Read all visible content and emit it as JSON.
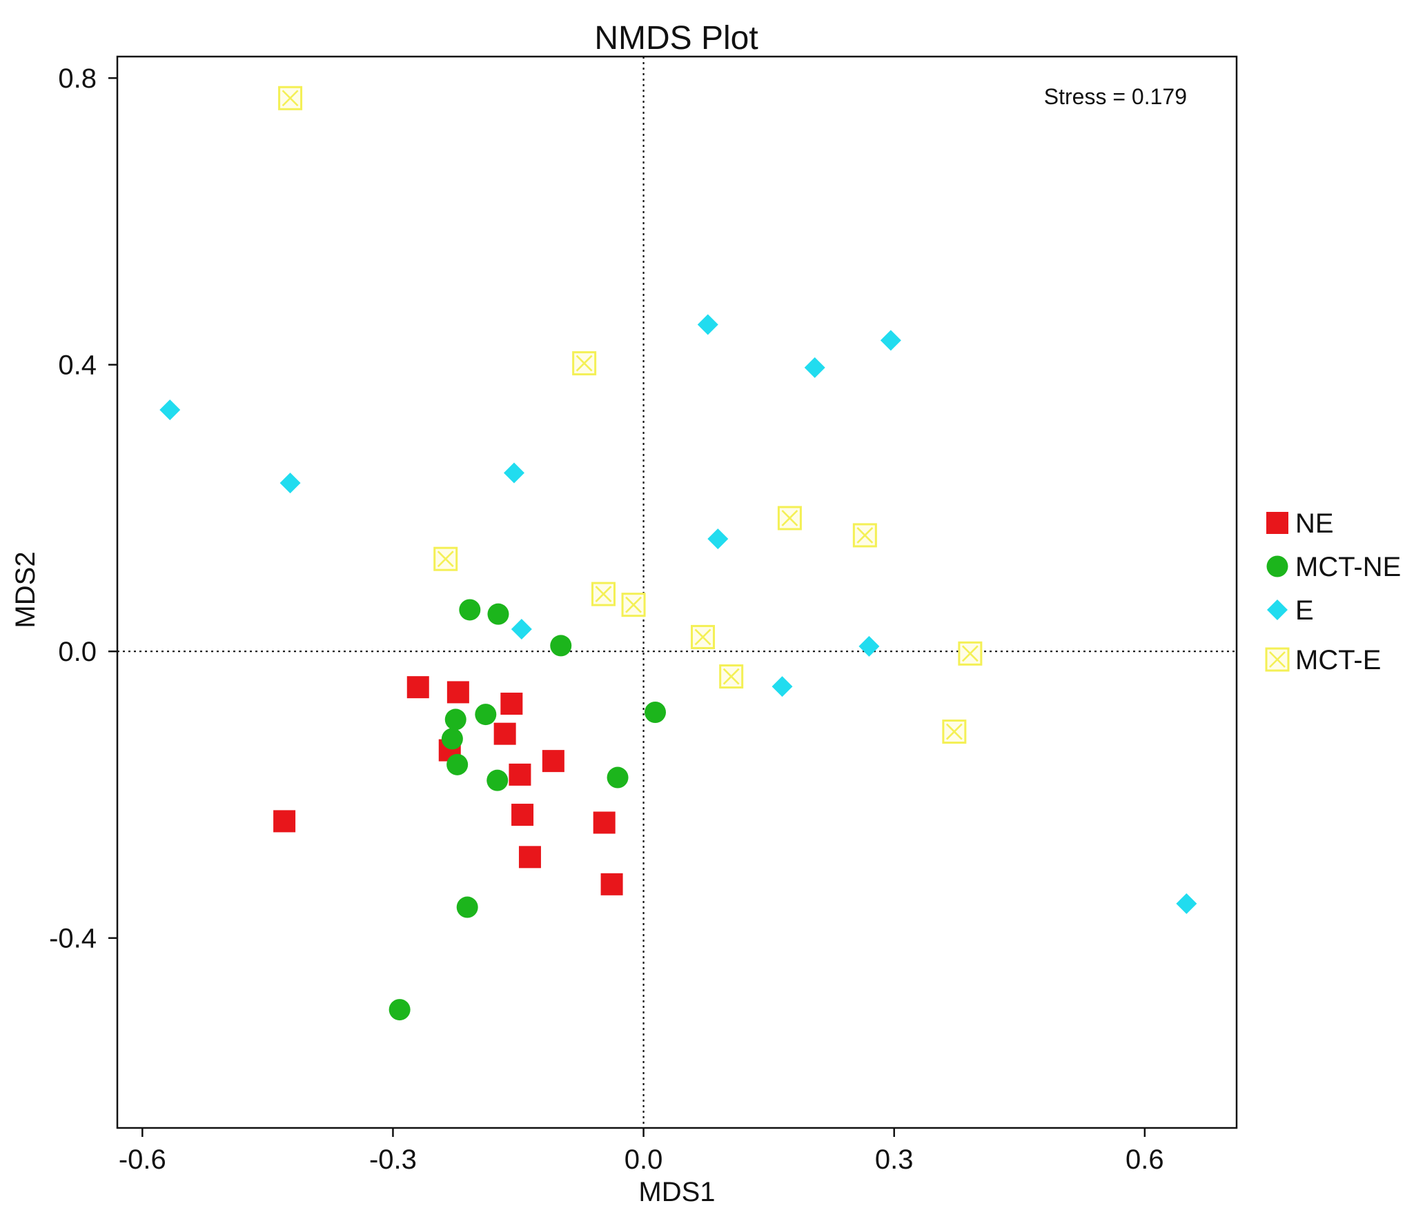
{
  "chart_data": {
    "type": "scatter",
    "title": "NMDS Plot",
    "xlabel": "MDS1",
    "ylabel": "MDS2",
    "xlim": [
      -0.63,
      0.71
    ],
    "ylim": [
      -0.665,
      0.83
    ],
    "xticks": [
      -0.6,
      -0.3,
      0.0,
      0.3,
      0.6
    ],
    "xtick_labels": [
      "-0.6",
      "-0.3",
      "0.0",
      "0.3",
      "0.6"
    ],
    "yticks": [
      -0.4,
      0.0,
      0.4,
      0.8
    ],
    "ytick_labels": [
      "-0.4",
      "0.0",
      "0.4",
      "0.8"
    ],
    "reference_lines": {
      "x": 0.0,
      "y": 0.0,
      "style": "dotted"
    },
    "annotation": "Stress = 0.179",
    "legend_position": "right",
    "series": [
      {
        "name": "NE",
        "marker": "square",
        "color": "#e8161b",
        "points": [
          [
            -0.27,
            -0.05
          ],
          [
            -0.222,
            -0.057
          ],
          [
            -0.158,
            -0.073
          ],
          [
            -0.232,
            -0.138
          ],
          [
            -0.166,
            -0.115
          ],
          [
            -0.148,
            -0.172
          ],
          [
            -0.108,
            -0.153
          ],
          [
            -0.43,
            -0.237
          ],
          [
            -0.145,
            -0.228
          ],
          [
            -0.136,
            -0.287
          ],
          [
            -0.047,
            -0.239
          ],
          [
            -0.038,
            -0.325
          ]
        ]
      },
      {
        "name": "MCT-NE",
        "marker": "circle",
        "color": "#1cb51c",
        "points": [
          [
            -0.208,
            0.058
          ],
          [
            -0.174,
            0.052
          ],
          [
            -0.099,
            0.008
          ],
          [
            -0.189,
            -0.088
          ],
          [
            -0.225,
            -0.095
          ],
          [
            -0.229,
            -0.122
          ],
          [
            -0.223,
            -0.158
          ],
          [
            -0.175,
            -0.18
          ],
          [
            0.014,
            -0.085
          ],
          [
            -0.031,
            -0.176
          ],
          [
            -0.211,
            -0.357
          ],
          [
            -0.292,
            -0.5
          ]
        ]
      },
      {
        "name": "E",
        "marker": "diamond",
        "color": "#21dcef",
        "points": [
          [
            -0.567,
            0.337
          ],
          [
            -0.423,
            0.235
          ],
          [
            -0.155,
            0.249
          ],
          [
            -0.146,
            0.031
          ],
          [
            0.077,
            0.456
          ],
          [
            0.205,
            0.396
          ],
          [
            0.296,
            0.434
          ],
          [
            0.089,
            0.157
          ],
          [
            0.27,
            0.007
          ],
          [
            0.166,
            -0.049
          ],
          [
            0.65,
            -0.352
          ]
        ]
      },
      {
        "name": "MCT-E",
        "marker": "boxed-x",
        "color": "#f4f055",
        "points": [
          [
            -0.423,
            0.772
          ],
          [
            -0.071,
            0.402
          ],
          [
            -0.237,
            0.129
          ],
          [
            -0.048,
            0.08
          ],
          [
            -0.012,
            0.065
          ],
          [
            0.175,
            0.186
          ],
          [
            0.265,
            0.162
          ],
          [
            0.071,
            0.02
          ],
          [
            0.391,
            -0.003
          ],
          [
            0.105,
            -0.035
          ],
          [
            0.372,
            -0.112
          ]
        ]
      }
    ]
  }
}
